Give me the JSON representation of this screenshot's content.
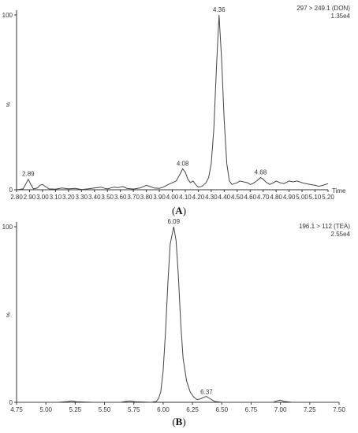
{
  "chart_data": [
    {
      "type": "line",
      "header_line1": "297 > 249.1 (DON)",
      "header_line2": "1.35e4",
      "ylabel": "%",
      "xlabel": "Time",
      "caption": "(A)",
      "caption_letter": "A",
      "xlim": [
        2.8,
        5.2
      ],
      "ylim": [
        0,
        100
      ],
      "x_ticks": [
        "2.80",
        "2.90",
        "3.00",
        "3.10",
        "3.20",
        "3.30",
        "3.40",
        "3.50",
        "3.60",
        "3.70",
        "3.80",
        "3.90",
        "4.00",
        "4.10",
        "4.20",
        "4.30",
        "4.40",
        "4.50",
        "4.60",
        "4.70",
        "4.80",
        "4.90",
        "5.00",
        "5.10",
        "5.20"
      ],
      "y_ticks": [
        "0",
        "100"
      ],
      "peak_labels": [
        {
          "label": "2.89",
          "x": 2.89,
          "y": 6
        },
        {
          "label": "4.08",
          "x": 4.08,
          "y": 12
        },
        {
          "label": "4.36",
          "x": 4.36,
          "y": 100
        },
        {
          "label": "4.68",
          "x": 4.68,
          "y": 7
        }
      ],
      "series": [
        {
          "points": [
            [
              2.8,
              0
            ],
            [
              2.85,
              0.5
            ],
            [
              2.87,
              3
            ],
            [
              2.89,
              6
            ],
            [
              2.91,
              3
            ],
            [
              2.93,
              0.5
            ],
            [
              2.96,
              1
            ],
            [
              2.98,
              2.5
            ],
            [
              3.0,
              3
            ],
            [
              3.02,
              2
            ],
            [
              3.05,
              0.5
            ],
            [
              3.1,
              0.3
            ],
            [
              3.15,
              1
            ],
            [
              3.2,
              0.5
            ],
            [
              3.25,
              0.8
            ],
            [
              3.3,
              0.2
            ],
            [
              3.35,
              0.5
            ],
            [
              3.4,
              1
            ],
            [
              3.45,
              1.5
            ],
            [
              3.48,
              0.8
            ],
            [
              3.5,
              0.5
            ],
            [
              3.55,
              1.5
            ],
            [
              3.58,
              1.2
            ],
            [
              3.62,
              1.8
            ],
            [
              3.65,
              0.8
            ],
            [
              3.7,
              0.4
            ],
            [
              3.75,
              1
            ],
            [
              3.8,
              2.5
            ],
            [
              3.83,
              1.8
            ],
            [
              3.86,
              1
            ],
            [
              3.9,
              0.8
            ],
            [
              3.93,
              1.5
            ],
            [
              3.97,
              3
            ],
            [
              4.0,
              4
            ],
            [
              4.03,
              5
            ],
            [
              4.06,
              9
            ],
            [
              4.08,
              12
            ],
            [
              4.1,
              10
            ],
            [
              4.12,
              6
            ],
            [
              4.14,
              4
            ],
            [
              4.16,
              5
            ],
            [
              4.18,
              3
            ],
            [
              4.2,
              1.5
            ],
            [
              4.23,
              2
            ],
            [
              4.26,
              4
            ],
            [
              4.28,
              7
            ],
            [
              4.3,
              15
            ],
            [
              4.32,
              35
            ],
            [
              4.34,
              70
            ],
            [
              4.36,
              100
            ],
            [
              4.38,
              75
            ],
            [
              4.4,
              40
            ],
            [
              4.42,
              15
            ],
            [
              4.44,
              5
            ],
            [
              4.46,
              3
            ],
            [
              4.5,
              4
            ],
            [
              4.52,
              5
            ],
            [
              4.55,
              4.5
            ],
            [
              4.58,
              4
            ],
            [
              4.6,
              3
            ],
            [
              4.62,
              3.5
            ],
            [
              4.65,
              5
            ],
            [
              4.68,
              7
            ],
            [
              4.7,
              6
            ],
            [
              4.72,
              4.5
            ],
            [
              4.75,
              3
            ],
            [
              4.78,
              4
            ],
            [
              4.8,
              5
            ],
            [
              4.83,
              4
            ],
            [
              4.86,
              3.5
            ],
            [
              4.9,
              5
            ],
            [
              4.93,
              4.5
            ],
            [
              4.96,
              5
            ],
            [
              5.0,
              4
            ],
            [
              5.03,
              3.5
            ],
            [
              5.06,
              3
            ],
            [
              5.1,
              2.5
            ],
            [
              5.13,
              2
            ],
            [
              5.16,
              2.5
            ],
            [
              5.2,
              3.5
            ]
          ]
        }
      ]
    },
    {
      "type": "line",
      "header_line1": "196.1 > 112 (TEA)",
      "header_line2": "2.55e4",
      "ylabel": "%",
      "xlabel": "",
      "caption": "(B)",
      "caption_letter": "B",
      "xlim": [
        4.75,
        7.5
      ],
      "ylim": [
        0,
        100
      ],
      "x_ticks": [
        "4.75",
        "5.00",
        "5.25",
        "5.50",
        "5.75",
        "6.00",
        "6.25",
        "6.50",
        "6.75",
        "7.00",
        "7.25",
        "7.50"
      ],
      "y_ticks": [
        "0",
        "100"
      ],
      "peak_labels": [
        {
          "label": "6.09",
          "x": 6.09,
          "y": 100
        },
        {
          "label": "6.37",
          "x": 6.37,
          "y": 3
        }
      ],
      "series": [
        {
          "points": [
            [
              4.75,
              0
            ],
            [
              5.1,
              0
            ],
            [
              5.18,
              0.4
            ],
            [
              5.22,
              0.8
            ],
            [
              5.26,
              0.3
            ],
            [
              5.4,
              0
            ],
            [
              5.64,
              0
            ],
            [
              5.68,
              0.5
            ],
            [
              5.72,
              0.8
            ],
            [
              5.76,
              0.3
            ],
            [
              5.9,
              0
            ],
            [
              5.94,
              0.5
            ],
            [
              5.96,
              2
            ],
            [
              5.98,
              6
            ],
            [
              6.0,
              18
            ],
            [
              6.02,
              40
            ],
            [
              6.04,
              68
            ],
            [
              6.06,
              90
            ],
            [
              6.09,
              100
            ],
            [
              6.11,
              92
            ],
            [
              6.13,
              72
            ],
            [
              6.15,
              45
            ],
            [
              6.17,
              25
            ],
            [
              6.2,
              12
            ],
            [
              6.23,
              6
            ],
            [
              6.26,
              3
            ],
            [
              6.29,
              1.5
            ],
            [
              6.32,
              2
            ],
            [
              6.35,
              3
            ],
            [
              6.37,
              3.3
            ],
            [
              6.4,
              2
            ],
            [
              6.44,
              0.5
            ],
            [
              6.5,
              0
            ],
            [
              6.94,
              0
            ],
            [
              6.97,
              0.8
            ],
            [
              7.0,
              1.2
            ],
            [
              7.03,
              0.5
            ],
            [
              7.1,
              0
            ],
            [
              7.5,
              0
            ]
          ]
        }
      ]
    }
  ]
}
